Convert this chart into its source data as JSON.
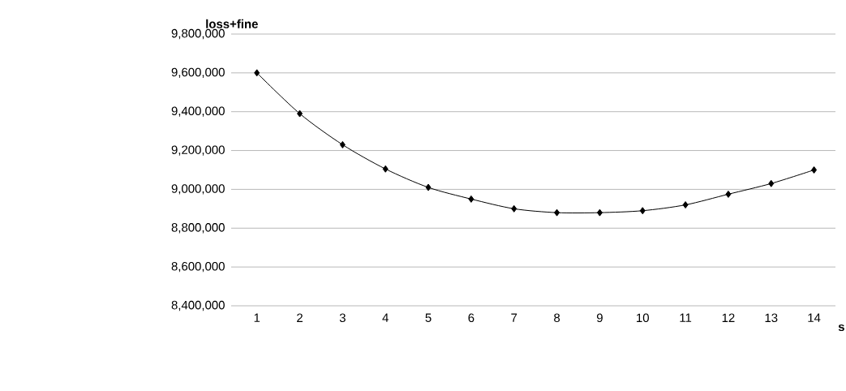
{
  "chart_data": {
    "type": "line",
    "xlabel": "s",
    "ylabel": "loss+fine",
    "categories": [
      "1",
      "2",
      "3",
      "4",
      "5",
      "6",
      "7",
      "8",
      "9",
      "10",
      "11",
      "12",
      "13",
      "14"
    ],
    "values": [
      9600000,
      9390000,
      9230000,
      9105000,
      9010000,
      8950000,
      8900000,
      8880000,
      8880000,
      8890000,
      8920000,
      8975000,
      9030000,
      9100000
    ],
    "color": "#000000",
    "marker": "diamond",
    "line_style": "solid",
    "ylim": [
      8400000,
      9800000
    ],
    "yticks": [
      {
        "value": 8400000,
        "label": "8,400,000"
      },
      {
        "value": 8600000,
        "label": "8,600,000"
      },
      {
        "value": 8800000,
        "label": "8,800,000"
      },
      {
        "value": 9000000,
        "label": "9,000,000"
      },
      {
        "value": 9200000,
        "label": "9,200,000"
      },
      {
        "value": 9400000,
        "label": "9,400,000"
      },
      {
        "value": 9600000,
        "label": "9,600,000"
      },
      {
        "value": 9800000,
        "label": "9,800,000"
      }
    ],
    "grid": "y"
  }
}
